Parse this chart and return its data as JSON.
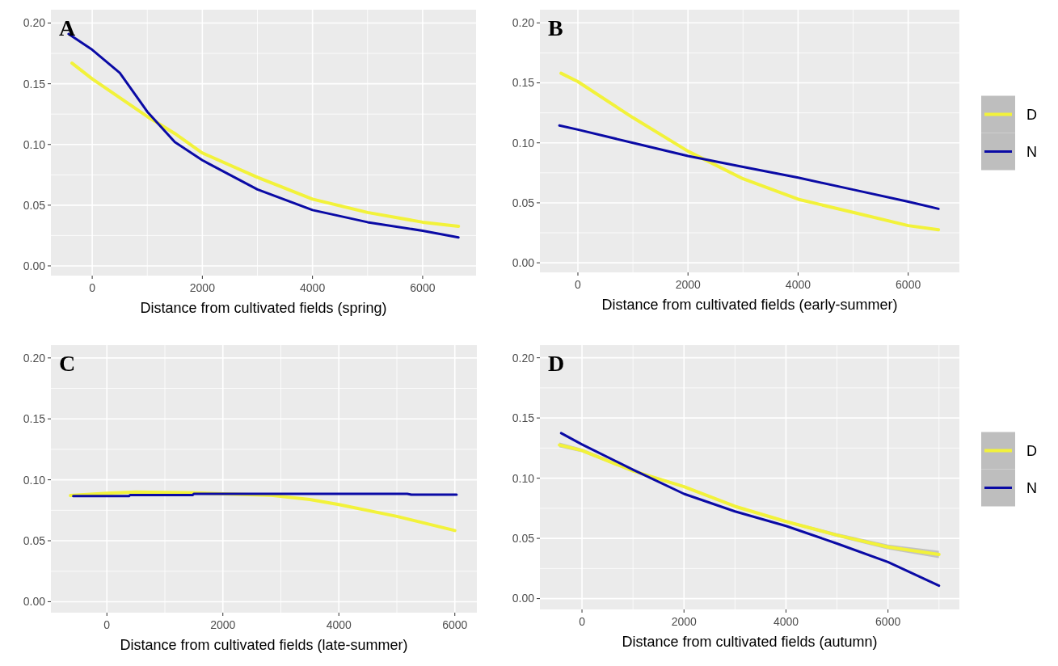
{
  "chart_data": [
    {
      "type": "line",
      "title": "A",
      "xlabel": "Distance from cultivated fields (spring)",
      "xlim": [
        -750,
        6970
      ],
      "ylim": [
        -0.008,
        0.211
      ],
      "xticks": [
        0,
        2000,
        4000,
        6000
      ],
      "yticks": [
        {
          "value": 0,
          "label": "0.00"
        },
        {
          "value": 0.05,
          "label": "0.05"
        },
        {
          "value": 0.1,
          "label": "0.10"
        },
        {
          "value": 0.15,
          "label": "0.15"
        },
        {
          "value": 0.2,
          "label": "0.20"
        }
      ],
      "grid": true,
      "legend": false,
      "series": [
        {
          "color": "#f2f23a",
          "x": [
            -367,
            0,
            1000,
            1500,
            2000,
            3000,
            4000,
            5000,
            6000,
            6650
          ],
          "values": [
            0.167,
            0.154,
            0.123,
            0.109,
            0.093,
            0.073,
            0.055,
            0.044,
            0.036,
            0.0326
          ]
        },
        {
          "color": "#0a0aa5",
          "x": [
            -429,
            0,
            500,
            1000,
            1500,
            2000,
            2500,
            3000,
            4000,
            5000,
            6000,
            6650
          ],
          "values": [
            0.191,
            0.178,
            0.159,
            0.127,
            0.102,
            0.087,
            0.075,
            0.063,
            0.046,
            0.036,
            0.029,
            0.0235
          ]
        }
      ]
    },
    {
      "type": "line",
      "title": "B",
      "xlabel": "Distance from cultivated fields (early-summer)",
      "xlim": [
        -690,
        6930
      ],
      "ylim": [
        -0.008,
        0.211
      ],
      "xticks": [
        0,
        2000,
        4000,
        6000
      ],
      "yticks": [
        {
          "value": 0,
          "label": "0.00"
        },
        {
          "value": 0.05,
          "label": "0.05"
        },
        {
          "value": 0.1,
          "label": "0.10"
        },
        {
          "value": 0.15,
          "label": "0.15"
        },
        {
          "value": 0.2,
          "label": "0.20"
        }
      ],
      "grid": true,
      "legend": "right",
      "series": [
        {
          "name": "D",
          "color": "#f2f23a",
          "x": [
            -306,
            0,
            1000,
            2000,
            3000,
            4000,
            5000,
            6000,
            6550
          ],
          "values": [
            0.158,
            0.151,
            0.121,
            0.093,
            0.07,
            0.053,
            0.042,
            0.031,
            0.0275
          ]
        },
        {
          "name": "N",
          "color": "#0a0aa5",
          "x": [
            -336,
            0,
            1000,
            2000,
            3000,
            4000,
            5000,
            6000,
            6550
          ],
          "values": [
            0.1145,
            0.111,
            0.1,
            0.089,
            0.08,
            0.071,
            0.061,
            0.051,
            0.045
          ]
        }
      ]
    },
    {
      "type": "line",
      "title": "C",
      "xlabel": "Distance from cultivated fields (late-summer)",
      "xlim": [
        -965,
        6380
      ],
      "ylim": [
        -0.009,
        0.2105
      ],
      "xticks": [
        0,
        2000,
        4000,
        6000
      ],
      "yticks": [
        {
          "value": 0,
          "label": "0.00"
        },
        {
          "value": 0.05,
          "label": "0.05"
        },
        {
          "value": 0.1,
          "label": "0.10"
        },
        {
          "value": 0.15,
          "label": "0.15"
        },
        {
          "value": 0.2,
          "label": "0.20"
        }
      ],
      "grid": true,
      "legend": false,
      "series": [
        {
          "color": "#f2f23a",
          "x": [
            -628,
            0,
            500,
            1500,
            2800,
            3500,
            4000,
            5000,
            6000
          ],
          "values": [
            0.0871,
            0.089,
            0.09,
            0.0893,
            0.0874,
            0.0838,
            0.0797,
            0.07,
            0.0584
          ]
        },
        {
          "color": "#0a0aa5",
          "x": [
            -580,
            380,
            400,
            1480,
            1500,
            5180,
            5250,
            6030
          ],
          "values": [
            0.0866,
            0.0866,
            0.0875,
            0.0875,
            0.0885,
            0.0885,
            0.0878,
            0.0878
          ]
        }
      ]
    },
    {
      "type": "line",
      "title": "D",
      "xlabel": "Distance from cultivated fields (autumn)",
      "xlim": [
        -825,
        7400
      ],
      "ylim": [
        -0.009,
        0.2105
      ],
      "xticks": [
        0,
        2000,
        4000,
        6000
      ],
      "yticks": [
        {
          "value": 0,
          "label": "0.00"
        },
        {
          "value": 0.05,
          "label": "0.05"
        },
        {
          "value": 0.1,
          "label": "0.10"
        },
        {
          "value": 0.15,
          "label": "0.15"
        },
        {
          "value": 0.2,
          "label": "0.20"
        }
      ],
      "grid": true,
      "legend": "right",
      "series": [
        {
          "name": "D",
          "color": "#f2f23a",
          "x": [
            -442,
            0,
            1000,
            2000,
            3000,
            4000,
            5000,
            6000,
            7000
          ],
          "values": [
            0.1276,
            0.123,
            0.106,
            0.093,
            0.0766,
            0.064,
            0.0527,
            0.0429,
            0.0367
          ],
          "lower": [
            0.1256,
            0.1215,
            0.105,
            0.092,
            0.0756,
            0.063,
            0.0512,
            0.0409,
            0.0337
          ],
          "upper": [
            0.1296,
            0.1245,
            0.107,
            0.094,
            0.0776,
            0.065,
            0.0542,
            0.0449,
            0.0397
          ]
        },
        {
          "name": "N",
          "color": "#0a0aa5",
          "x": [
            -409,
            0,
            1000,
            2000,
            3000,
            4000,
            5000,
            6000,
            7000
          ],
          "values": [
            0.1374,
            0.128,
            0.107,
            0.087,
            0.0724,
            0.0603,
            0.0457,
            0.0303,
            0.0107
          ]
        }
      ]
    }
  ]
}
